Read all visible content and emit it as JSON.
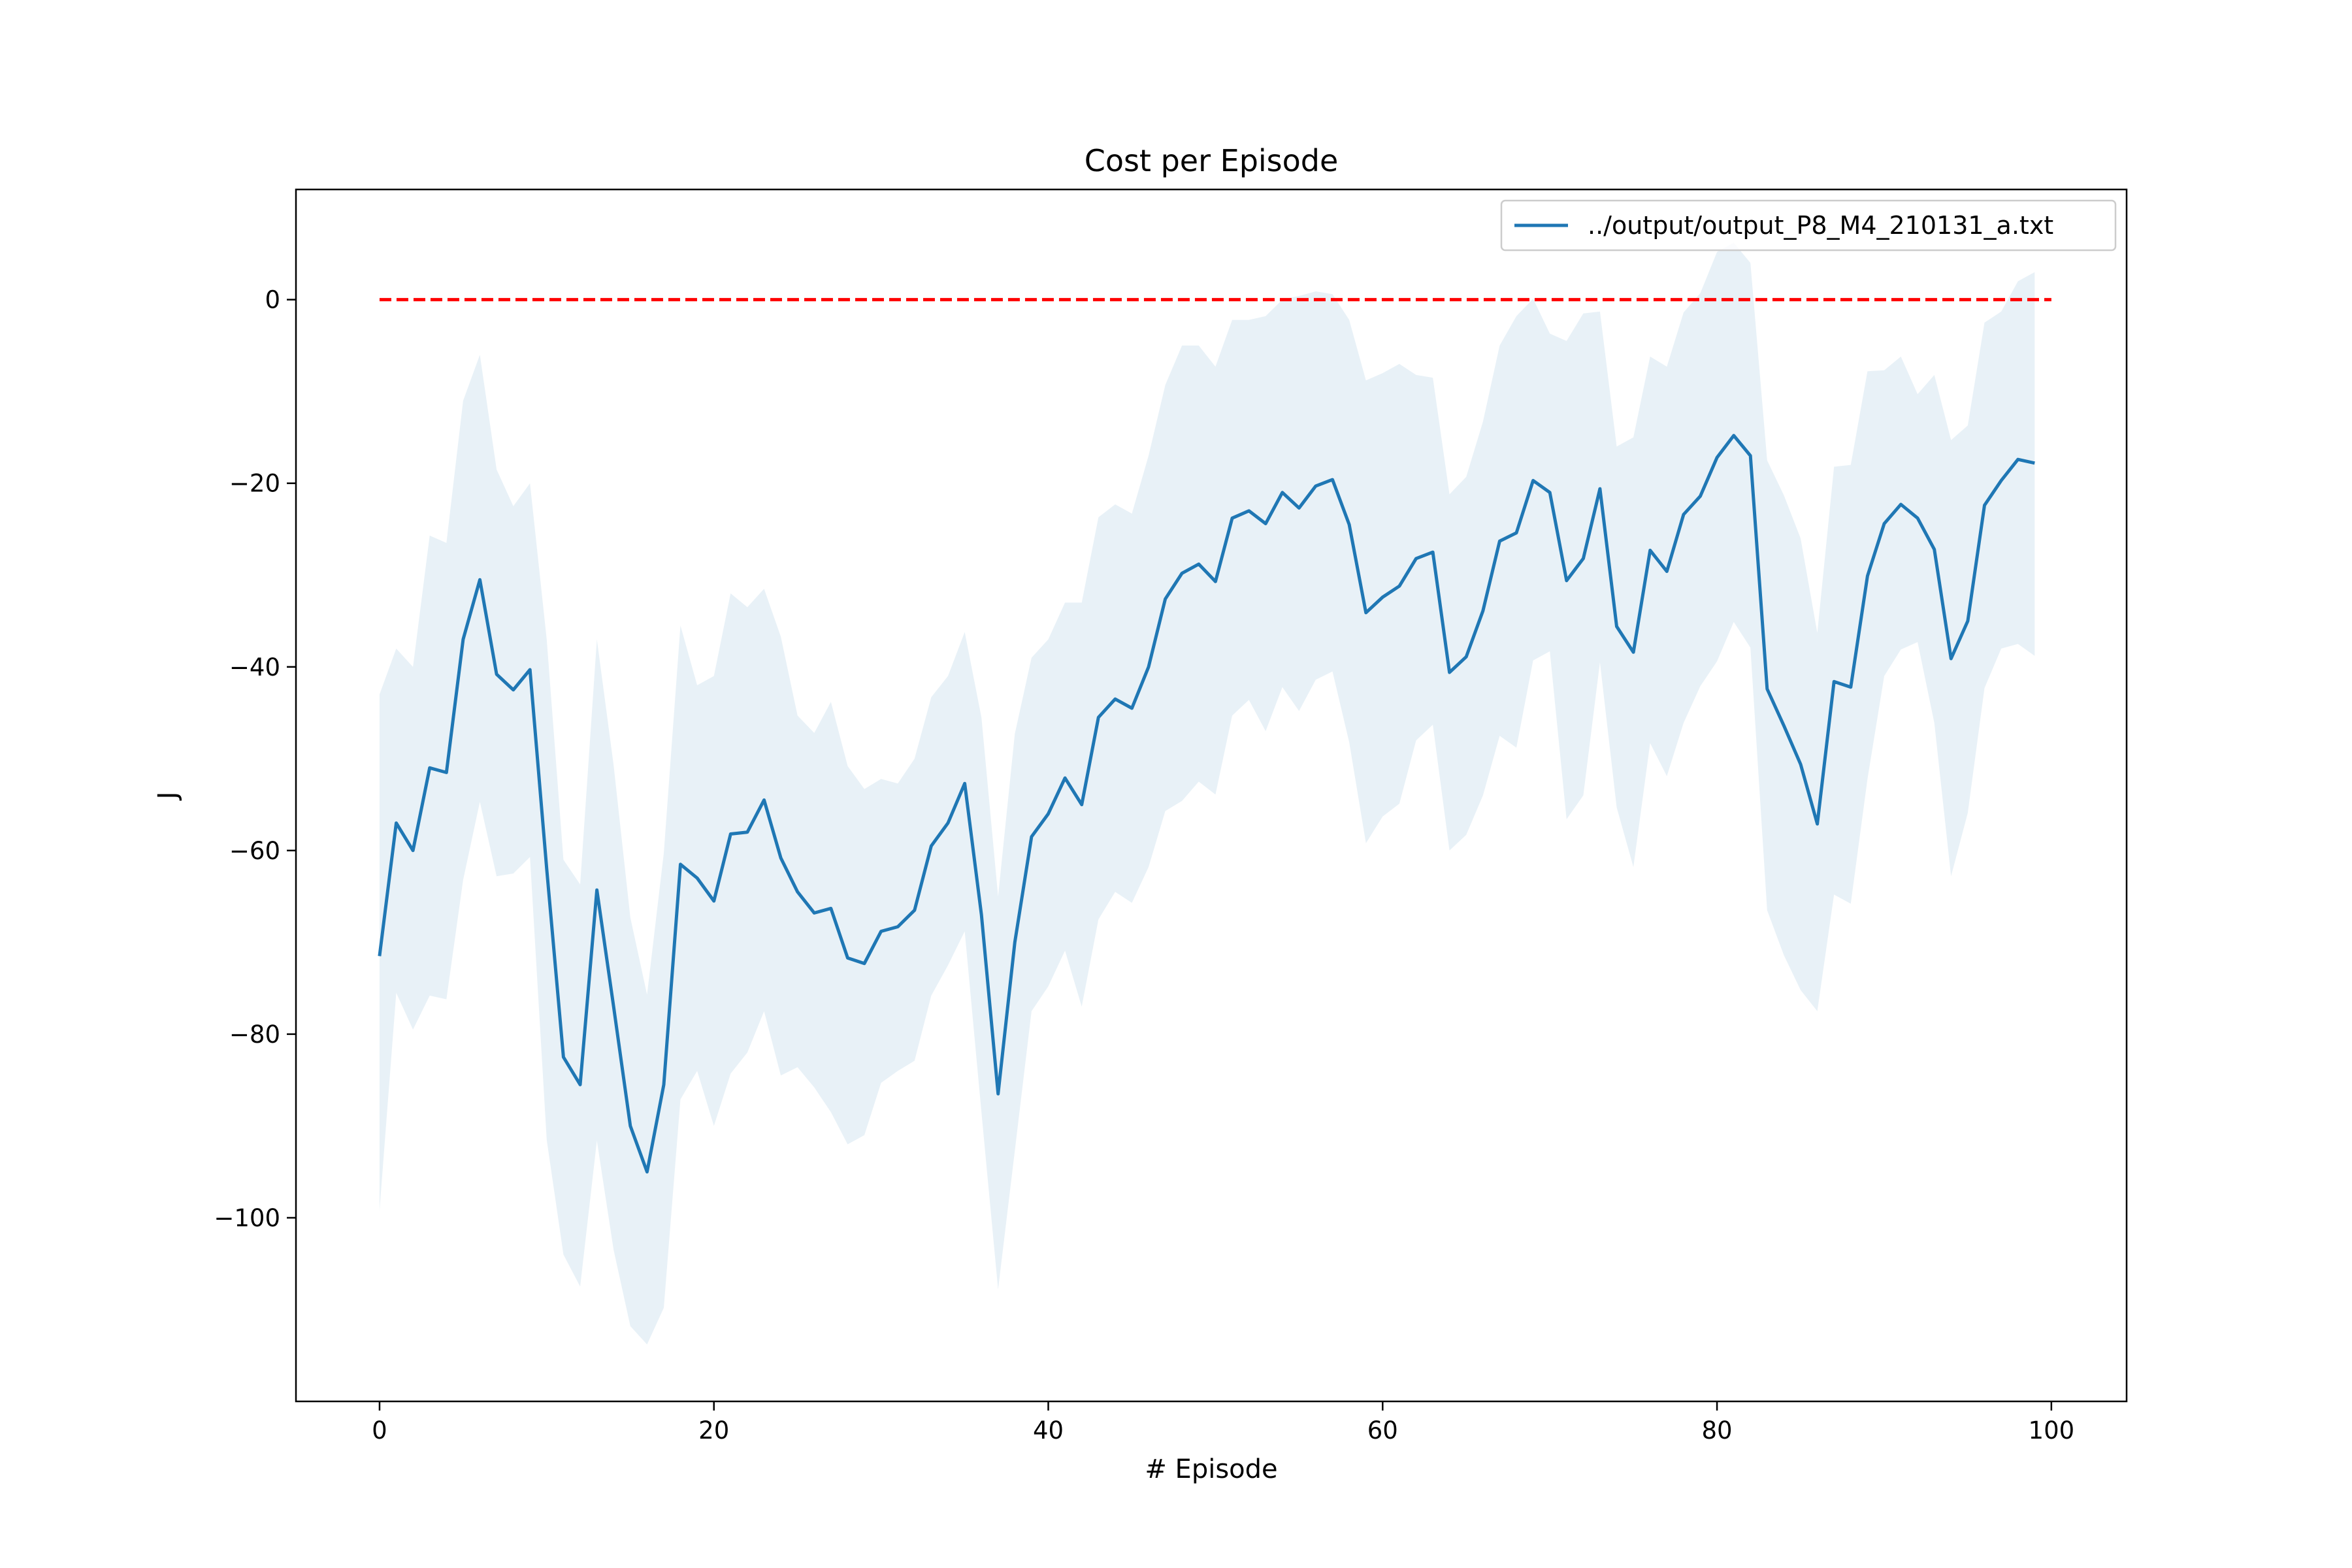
{
  "chart_data": {
    "type": "line",
    "title": "Cost per Episode",
    "xlabel": "# Episode",
    "ylabel": "J",
    "xlim": [
      -5,
      104.5
    ],
    "ylim": [
      -120,
      12
    ],
    "xticks": [
      0,
      20,
      40,
      60,
      80,
      100
    ],
    "yticks": [
      0,
      -20,
      -40,
      -60,
      -80,
      -100
    ],
    "grid": false,
    "legend_position": "top-right",
    "series": [
      {
        "name": "../output/output_P8_M4_210131_a.txt",
        "color": "#1f77b4",
        "x": [
          0,
          1,
          2,
          3,
          4,
          5,
          6,
          7,
          8,
          9,
          10,
          11,
          12,
          13,
          14,
          15,
          16,
          17,
          18,
          19,
          20,
          21,
          22,
          23,
          24,
          25,
          26,
          27,
          28,
          29,
          30,
          31,
          32,
          33,
          34,
          35,
          36,
          37,
          38,
          39,
          40,
          41,
          42,
          43,
          44,
          45,
          46,
          47,
          48,
          49,
          50,
          51,
          52,
          53,
          54,
          55,
          56,
          57,
          58,
          59,
          60,
          61,
          62,
          63,
          64,
          65,
          66,
          67,
          68,
          69,
          70,
          71,
          72,
          73,
          74,
          75,
          76,
          77,
          78,
          79,
          80,
          81,
          82,
          83,
          84,
          85,
          86,
          87,
          88,
          89,
          90,
          91,
          92,
          93,
          94,
          95,
          96,
          97,
          98,
          99
        ],
        "y": [
          -71.5,
          -57,
          -60,
          -51,
          -51.5,
          -37,
          -30.5,
          -40.8,
          -42.5,
          -40.3,
          -62,
          -82.5,
          -85.5,
          -64.3,
          -77,
          -90,
          -95,
          -85.5,
          -61.5,
          -63,
          -65.5,
          -58.2,
          -58,
          -54.5,
          -60.8,
          -64.5,
          -66.8,
          -66.3,
          -71.7,
          -72.3,
          -68.8,
          -68.3,
          -66.5,
          -59.5,
          -57,
          -52.7,
          -67,
          -86.5,
          -70,
          -58.5,
          -56,
          -52.1,
          -55,
          -45.5,
          -43.5,
          -44.5,
          -40,
          -32.6,
          -29.8,
          -28.8,
          -30.7,
          -23.8,
          -23,
          -24.4,
          -21,
          -22.7,
          -20.3,
          -19.6,
          -24.5,
          -34.1,
          -32.4,
          -31.2,
          -28.2,
          -27.5,
          -40.6,
          -38.9,
          -33.9,
          -26.3,
          -25.4,
          -19.7,
          -21,
          -30.6,
          -28.2,
          -20.6,
          -35.6,
          -38.4,
          -27.3,
          -29.6,
          -23.4,
          -21.4,
          -17.2,
          -14.8,
          -17,
          -42.4,
          -46.4,
          -50.6,
          -57.1,
          -41.6,
          -42.2,
          -30.1,
          -24.4,
          -22.3,
          -23.8,
          -27.2,
          -39.1,
          -35,
          -22.4,
          -19.7,
          -17.4,
          -17.8
        ]
      }
    ],
    "band": {
      "upper": [
        -43,
        -38,
        -40,
        -25.7,
        -26.5,
        -11,
        -6,
        -18.5,
        -22.5,
        -20,
        -37,
        -61,
        -63.7,
        -37,
        -50.7,
        -67.3,
        -75.7,
        -60.3,
        -35.5,
        -42,
        -41,
        -32,
        -33.5,
        -31.5,
        -36.7,
        -45.3,
        -47.2,
        -43.8,
        -50.8,
        -53.3,
        -52.2,
        -52.7,
        -50,
        -43.3,
        -41,
        -36.2,
        -45.5,
        -65,
        -47.3,
        -39,
        -37,
        -33,
        -33,
        -23.7,
        -22.3,
        -23.3,
        -17,
        -9.3,
        -5,
        -5,
        -7.3,
        -2.2,
        -2.2,
        -1.8,
        0,
        0.4,
        0.9,
        0.6,
        -2.2,
        -8.8,
        -8,
        -7,
        -8.2,
        -8.5,
        -21.2,
        -19.3,
        -13.3,
        -5,
        -1.8,
        0.1,
        -3.7,
        -4.5,
        -1.5,
        -1.3,
        -16,
        -15,
        -6.2,
        -7.3,
        -1.4,
        0.7,
        5.2,
        6.2,
        4,
        -17.5,
        -21.3,
        -26,
        -36.3,
        -18.2,
        -18,
        -7.8,
        -7.7,
        -6.2,
        -10.3,
        -8.2,
        -15.3,
        -13.7,
        -2.5,
        -1.3,
        2,
        3
      ],
      "lower": [
        -99.2,
        -75.5,
        -79.5,
        -75.8,
        -76.2,
        -63.2,
        -54.7,
        -62.8,
        -62.5,
        -60.7,
        -91.5,
        -104,
        -107.5,
        -91.6,
        -103.5,
        -111.8,
        -113.8,
        -109.8,
        -87.1,
        -84,
        -90,
        -84.3,
        -82,
        -77.5,
        -84.5,
        -83.6,
        -85.8,
        -88.5,
        -92,
        -91,
        -85.3,
        -84,
        -82.9,
        -75.8,
        -72.5,
        -68.8,
        -88.5,
        -107.8,
        -92.7,
        -77.5,
        -74.8,
        -70.9,
        -77,
        -67.5,
        -64.5,
        -65.7,
        -61.8,
        -55.7,
        -54.6,
        -52.5,
        -53.9,
        -45.3,
        -43.6,
        -47,
        -42.2,
        -44.8,
        -41.4,
        -40.5,
        -48.2,
        -59.2,
        -56.3,
        -54.9,
        -48,
        -46.3,
        -60,
        -58.3,
        -54,
        -47.5,
        -48.8,
        -39.3,
        -38.3,
        -56.6,
        -54,
        -39.5,
        -55.3,
        -61.8,
        -48.3,
        -51.9,
        -46.1,
        -42.1,
        -39.4,
        -35.1,
        -37.9,
        -66.5,
        -71.4,
        -75.2,
        -77.5,
        -64.8,
        -65.8,
        -52.2,
        -41,
        -38.1,
        -37.3,
        -46.1,
        -62.8,
        -55.9,
        -42.3,
        -38,
        -37.5,
        -38.8
      ],
      "color": "#1f77b4",
      "opacity": 0.1
    },
    "reference_line": {
      "y": 0,
      "x_from": 0,
      "x_to": 100,
      "color": "#ff0000",
      "style": "dashed"
    }
  }
}
